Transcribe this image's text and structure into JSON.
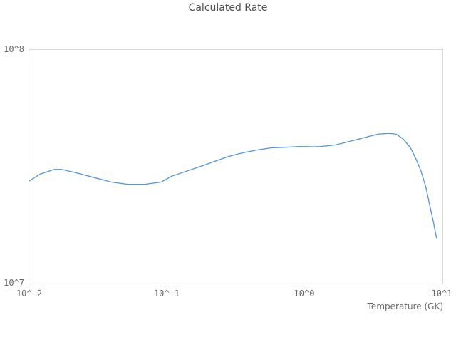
{
  "title": "Calculated Rate",
  "axes": {
    "x_label": "Temperature (GK)",
    "x_ticks": [
      "10^-2",
      "10^-1",
      "10^0",
      "10^1"
    ],
    "y_ticks": [
      "10^7",
      "10^8"
    ]
  },
  "colors": {
    "line": "#4f94e3",
    "plot_border": "#d9d9d9"
  },
  "chart_data": {
    "type": "line",
    "title": "Calculated Rate",
    "xlabel": "Temperature (GK)",
    "ylabel": "",
    "x_scale": "log",
    "y_scale": "log",
    "xlim": [
      0.01,
      10
    ],
    "ylim": [
      10000000.0,
      100000000.0
    ],
    "grid": false,
    "legend": false,
    "line_color": "#4f94e3",
    "series": [
      {
        "name": "Calculated Rate",
        "x": [
          0.01,
          0.012,
          0.0152,
          0.0171,
          0.0209,
          0.0285,
          0.0394,
          0.052,
          0.069,
          0.091,
          0.108,
          0.137,
          0.175,
          0.221,
          0.281,
          0.357,
          0.452,
          0.574,
          0.728,
          0.924,
          1.17,
          1.32,
          1.68,
          2.13,
          2.7,
          3.43,
          4.1,
          4.61,
          5.2,
          5.86,
          6.44,
          7.0,
          7.6,
          8.07,
          8.57,
          9.05
        ],
        "y": [
          27500000.0,
          29400000.0,
          30800000.0,
          30800000.0,
          30000000.0,
          28600000.0,
          27200000.0,
          26600000.0,
          26600000.0,
          27200000.0,
          28800000.0,
          30200000.0,
          31700000.0,
          33300000.0,
          35000000.0,
          36300000.0,
          37300000.0,
          38100000.0,
          38300000.0,
          38600000.0,
          38500000.0,
          38600000.0,
          39200000.0,
          40600000.0,
          42100000.0,
          43600000.0,
          43900000.0,
          43600000.0,
          41500000.0,
          38100000.0,
          34000000.0,
          30200000.0,
          25700000.0,
          21700000.0,
          18500000.0,
          15700000.0
        ]
      }
    ]
  }
}
